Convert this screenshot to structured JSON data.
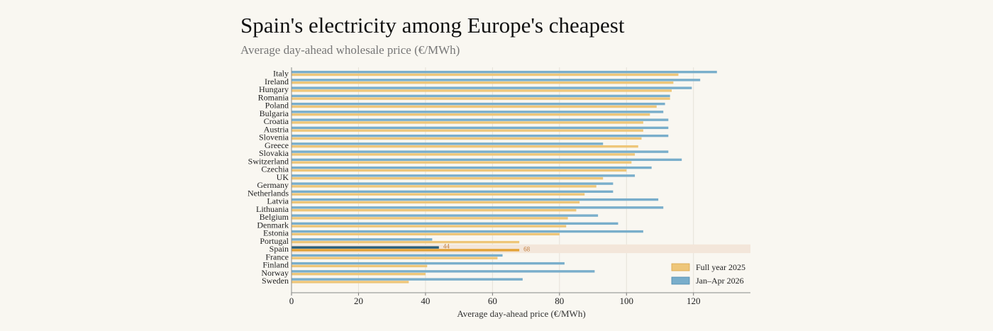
{
  "title": "Spain's electricity among Europe's cheapest",
  "subtitle": "Average day-ahead wholesale price (€/MWh)",
  "colors": {
    "full_year": "#eec679",
    "jan_apr": "#79aecb",
    "spain_full_year": "#e3a236",
    "spain_jan_apr": "#2a5f79",
    "highlight_band": "#f3e6da",
    "label_text": "#c07a38"
  },
  "chart_data": {
    "type": "bar",
    "orientation": "horizontal",
    "categories": [
      "Italy",
      "Ireland",
      "Hungary",
      "Romania",
      "Poland",
      "Bulgaria",
      "Croatia",
      "Austria",
      "Slovenia",
      "Greece",
      "Slovakia",
      "Switzerland",
      "Czechia",
      "UK",
      "Germany",
      "Netherlands",
      "Latvia",
      "Lithuania",
      "Belgium",
      "Denmark",
      "Estonia",
      "Portugal",
      "Spain",
      "France",
      "Finland",
      "Norway",
      "Sweden"
    ],
    "series": [
      {
        "name": "Full year 2025",
        "values": [
          115.5,
          114,
          113.5,
          113,
          109,
          107,
          105,
          105,
          104.5,
          103.5,
          102.5,
          101.5,
          100,
          93,
          91,
          87.5,
          86,
          85,
          82.5,
          82,
          80,
          68,
          68,
          61.5,
          40.5,
          40,
          35
        ]
      },
      {
        "name": "Jan–Apr 2026",
        "values": [
          127,
          122,
          119.5,
          113,
          111.5,
          111,
          112.5,
          112.5,
          112.5,
          93,
          112.5,
          116.5,
          107.5,
          102.5,
          96,
          96,
          109.5,
          111,
          91.5,
          97.5,
          105,
          42,
          44,
          63,
          81.5,
          90.5,
          69
        ]
      }
    ],
    "highlight": "Spain",
    "data_labels": [
      {
        "category": "Spain",
        "series": "Jan–Apr 2026",
        "text": "44"
      },
      {
        "category": "Spain",
        "series": "Full year 2025",
        "text": "68"
      }
    ],
    "x_ticks": [
      "0",
      "20",
      "40",
      "60",
      "80",
      "100",
      "120"
    ],
    "xlim": [
      0,
      137
    ],
    "xlabel": "Average day-ahead price (€/MWh)",
    "ylabel": "",
    "grid": "vertical",
    "legend": {
      "position": "bottom-right"
    }
  }
}
